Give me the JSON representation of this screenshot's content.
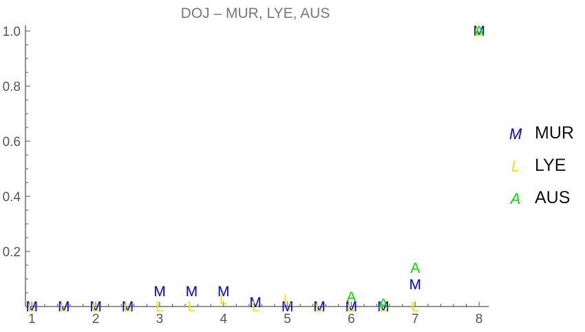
{
  "chart_data": {
    "type": "scatter",
    "title": "DOJ – MUR, LYE, AUS",
    "xlabel": "",
    "ylabel": "",
    "xlim": [
      0.9,
      8.15
    ],
    "ylim": [
      0,
      1.02
    ],
    "x_ticks": [
      1,
      2,
      3,
      4,
      5,
      6,
      7,
      8
    ],
    "y_ticks": [
      0.2,
      0.4,
      0.6,
      0.8,
      1.0
    ],
    "y_tick_labels": [
      "0.2",
      "0.4",
      "0.6",
      "0.8",
      "1.0"
    ],
    "grid": false,
    "legend_position": "right",
    "series": [
      {
        "name": "MUR",
        "marker": "M",
        "color": "#0000ee",
        "points": [
          [
            1,
            0.0
          ],
          [
            1.5,
            0.0
          ],
          [
            2,
            0.0
          ],
          [
            2.5,
            0.0
          ],
          [
            3,
            0.055
          ],
          [
            3.5,
            0.055
          ],
          [
            4,
            0.055
          ],
          [
            4.5,
            0.015
          ],
          [
            5,
            0.0
          ],
          [
            5.5,
            0.0
          ],
          [
            6,
            0.0
          ],
          [
            6.5,
            0.0
          ],
          [
            7,
            0.08
          ],
          [
            8,
            1.0
          ]
        ]
      },
      {
        "name": "LYE",
        "marker": "L",
        "color": "#f2e600",
        "points": [
          [
            1,
            0.0
          ],
          [
            1.5,
            0.0
          ],
          [
            2,
            0.0
          ],
          [
            2.5,
            0.0
          ],
          [
            3,
            0.0
          ],
          [
            3.5,
            0.0
          ],
          [
            4,
            0.025
          ],
          [
            4.5,
            0.0
          ],
          [
            5,
            0.025
          ],
          [
            5.5,
            0.0
          ],
          [
            6,
            0.0
          ],
          [
            6.5,
            0.0
          ],
          [
            7,
            0.0
          ],
          [
            8,
            1.0
          ]
        ]
      },
      {
        "name": "AUS",
        "marker": "A",
        "color": "#00e000",
        "points": [
          [
            6,
            0.035
          ],
          [
            6.5,
            0.01
          ],
          [
            7,
            0.14
          ],
          [
            8,
            1.0
          ]
        ]
      }
    ]
  }
}
